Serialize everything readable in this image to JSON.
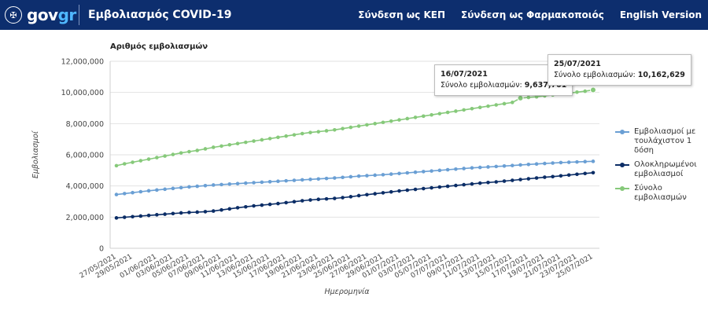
{
  "header": {
    "logo_text_main": "gov",
    "logo_text_accent": "gr",
    "title": "Εμβολιασμός COVID-19",
    "nav": [
      "Σύνδεση ως ΚΕΠ",
      "Σύνδεση ως Φαρμακοποιός",
      "English Version"
    ]
  },
  "colors": {
    "header_bg": "#0d2e6e",
    "series": [
      "#6a9fd4",
      "#0b2d66",
      "#86c97a"
    ]
  },
  "tooltips": [
    {
      "date": "16/07/2021",
      "label": "Σύνολο εμβολιασμών:",
      "value": "9,637,701"
    },
    {
      "date": "25/07/2021",
      "label": "Σύνολο εμβολιασμών:",
      "value": "10,162,629"
    }
  ],
  "chart_data": {
    "type": "line",
    "title": "Αριθμός εμβολιασμών",
    "xlabel": "Ημερομηνία",
    "ylabel": "Εμβολιασμοί",
    "ylim": [
      0,
      12000000
    ],
    "yticks": [
      "0",
      "2,000,000",
      "4,000,000",
      "6,000,000",
      "8,000,000",
      "10,000,000",
      "12,000,000"
    ],
    "grid": true,
    "legend_position": "right",
    "x": [
      "27/05/2021",
      "28/05/2021",
      "29/05/2021",
      "30/05/2021",
      "31/05/2021",
      "01/06/2021",
      "02/06/2021",
      "03/06/2021",
      "04/06/2021",
      "05/06/2021",
      "06/06/2021",
      "07/06/2021",
      "08/06/2021",
      "09/06/2021",
      "10/06/2021",
      "11/06/2021",
      "12/06/2021",
      "13/06/2021",
      "14/06/2021",
      "15/06/2021",
      "16/06/2021",
      "17/06/2021",
      "18/06/2021",
      "19/06/2021",
      "20/06/2021",
      "21/06/2021",
      "22/06/2021",
      "23/06/2021",
      "24/06/2021",
      "25/06/2021",
      "26/06/2021",
      "27/06/2021",
      "28/06/2021",
      "29/06/2021",
      "30/06/2021",
      "01/07/2021",
      "02/07/2021",
      "03/07/2021",
      "04/07/2021",
      "05/07/2021",
      "06/07/2021",
      "07/07/2021",
      "08/07/2021",
      "09/07/2021",
      "10/07/2021",
      "11/07/2021",
      "12/07/2021",
      "13/07/2021",
      "14/07/2021",
      "15/07/2021",
      "16/07/2021",
      "17/07/2021",
      "18/07/2021",
      "19/07/2021",
      "20/07/2021",
      "21/07/2021",
      "22/07/2021",
      "23/07/2021",
      "24/07/2021",
      "25/07/2021"
    ],
    "xtick_labels": [
      "27/05/2021",
      "29/05/2021",
      "01/06/2021",
      "03/06/2021",
      "05/06/2021",
      "07/06/2021",
      "09/06/2021",
      "11/06/2021",
      "13/06/2021",
      "15/06/2021",
      "17/06/2021",
      "19/06/2021",
      "21/06/2021",
      "23/06/2021",
      "25/06/2021",
      "27/06/2021",
      "29/06/2021",
      "01/07/2021",
      "03/07/2021",
      "05/07/2021",
      "07/07/2021",
      "09/07/2021",
      "11/07/2021",
      "13/07/2021",
      "15/07/2021",
      "17/07/2021",
      "19/07/2021",
      "21/07/2021",
      "23/07/2021",
      "25/07/2021"
    ],
    "series": [
      {
        "name": "Εμβολιασμοί με τουλάχιστον 1 δόση",
        "values": [
          3450000,
          3510000,
          3570000,
          3630000,
          3690000,
          3740000,
          3790000,
          3840000,
          3890000,
          3940000,
          3980000,
          4020000,
          4060000,
          4090000,
          4120000,
          4150000,
          4180000,
          4210000,
          4240000,
          4270000,
          4300000,
          4330000,
          4360000,
          4390000,
          4420000,
          4450000,
          4480000,
          4510000,
          4550000,
          4590000,
          4630000,
          4660000,
          4690000,
          4720000,
          4760000,
          4800000,
          4840000,
          4880000,
          4920000,
          4960000,
          5000000,
          5040000,
          5080000,
          5120000,
          5160000,
          5190000,
          5220000,
          5250000,
          5280000,
          5310000,
          5350000,
          5380000,
          5410000,
          5440000,
          5470000,
          5500000,
          5520000,
          5540000,
          5560000,
          5580000
        ]
      },
      {
        "name": "Ολοκληρωμένοι εμβολιασμοί",
        "values": [
          1950000,
          1990000,
          2030000,
          2070000,
          2110000,
          2150000,
          2190000,
          2230000,
          2270000,
          2300000,
          2320000,
          2350000,
          2390000,
          2460000,
          2530000,
          2600000,
          2660000,
          2720000,
          2770000,
          2820000,
          2870000,
          2930000,
          2990000,
          3050000,
          3100000,
          3140000,
          3170000,
          3200000,
          3250000,
          3310000,
          3380000,
          3440000,
          3500000,
          3560000,
          3620000,
          3680000,
          3730000,
          3780000,
          3830000,
          3880000,
          3930000,
          3980000,
          4030000,
          4080000,
          4130000,
          4180000,
          4220000,
          4260000,
          4310000,
          4360000,
          4410000,
          4460000,
          4510000,
          4560000,
          4600000,
          4650000,
          4700000,
          4750000,
          4800000,
          4850000
        ]
      },
      {
        "name": "Σύνολο εμβολιασμών",
        "values": [
          5300000,
          5420000,
          5520000,
          5620000,
          5720000,
          5820000,
          5920000,
          6020000,
          6120000,
          6200000,
          6280000,
          6380000,
          6480000,
          6560000,
          6640000,
          6720000,
          6800000,
          6880000,
          6960000,
          7040000,
          7120000,
          7200000,
          7280000,
          7360000,
          7430000,
          7480000,
          7540000,
          7600000,
          7680000,
          7760000,
          7840000,
          7920000,
          8000000,
          8080000,
          8160000,
          8240000,
          8320000,
          8400000,
          8480000,
          8560000,
          8640000,
          8720000,
          8800000,
          8880000,
          8960000,
          9040000,
          9120000,
          9200000,
          9280000,
          9360000,
          9637701,
          9680000,
          9720000,
          9780000,
          9840000,
          9900000,
          9960000,
          10020000,
          10080000,
          10162629
        ]
      }
    ]
  }
}
